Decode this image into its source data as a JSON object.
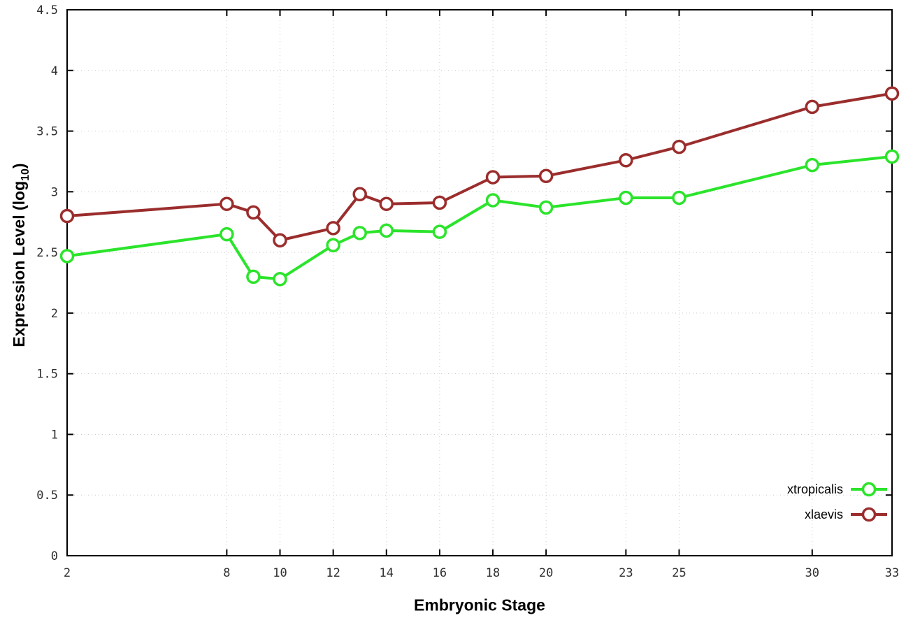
{
  "chart_data": {
    "type": "line",
    "x": [
      2,
      8,
      9,
      10,
      12,
      13,
      14,
      16,
      18,
      20,
      23,
      25,
      30,
      33
    ],
    "series": [
      {
        "name": "xtropicalis",
        "color": "#2be42b",
        "values": [
          2.47,
          2.65,
          2.3,
          2.28,
          2.56,
          2.66,
          2.68,
          2.67,
          2.93,
          2.87,
          2.95,
          2.95,
          3.22,
          3.29
        ]
      },
      {
        "name": "xlaevis",
        "color": "#9b2d2d",
        "values": [
          2.8,
          2.9,
          2.83,
          2.6,
          2.7,
          2.98,
          2.9,
          2.91,
          3.12,
          3.13,
          3.26,
          3.37,
          3.7,
          3.81
        ]
      }
    ],
    "title": "",
    "xlabel": "Embryonic Stage",
    "ylabel": "Expression Level (log10)",
    "ylabel_parts": {
      "prefix": "Expression Level (log",
      "sub": "10",
      "suffix": ")"
    },
    "xlim": [
      2,
      33
    ],
    "ylim": [
      0,
      4.5
    ],
    "xticks": [
      2,
      8,
      10,
      12,
      14,
      16,
      18,
      20,
      23,
      25,
      30,
      33
    ],
    "yticks": [
      0,
      0.5,
      1,
      1.5,
      2,
      2.5,
      3,
      3.5,
      4,
      4.5
    ],
    "grid": true,
    "legend_position": "bottom-right",
    "legend": [
      "xtropicalis",
      "xlaevis"
    ],
    "marker": "open-circle"
  },
  "colors": {
    "background": "#ffffff",
    "axis": "#000000",
    "grid": "#c9c9c9",
    "tick_label": "#303030"
  }
}
